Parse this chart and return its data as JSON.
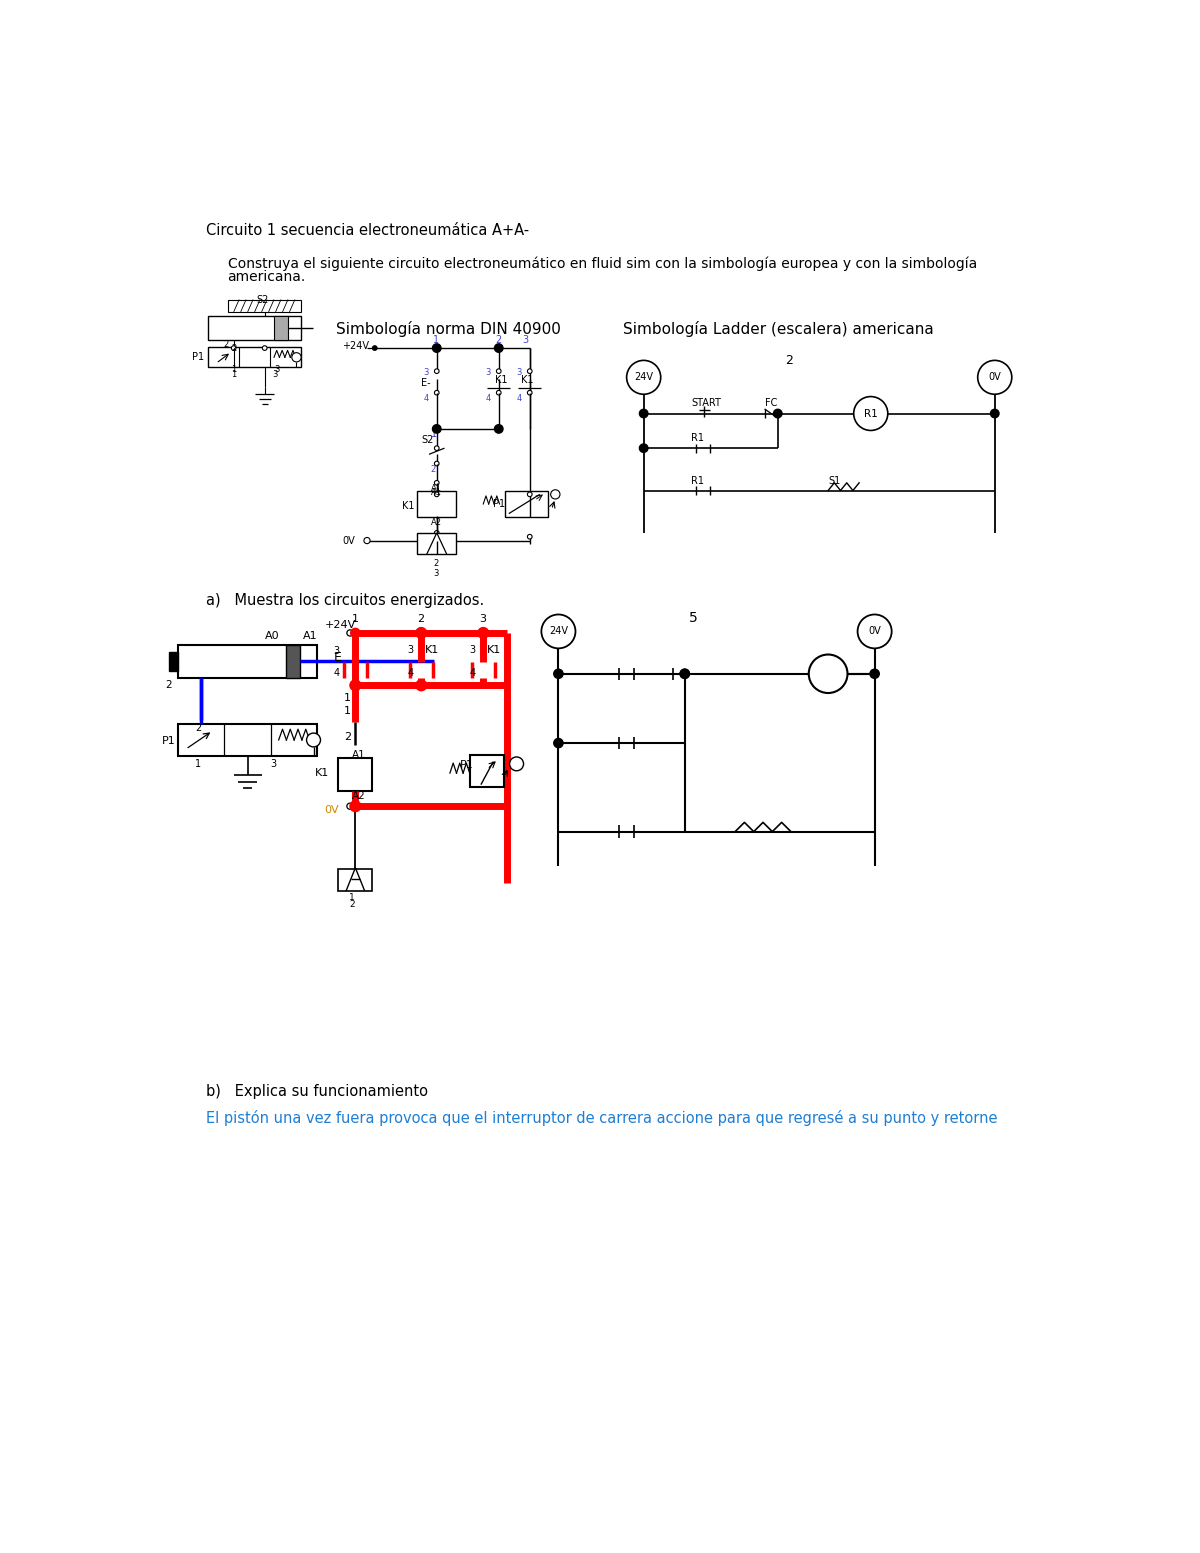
{
  "title_line": "Circuito 1 secuencia electroneumática A+A-",
  "body_line1": "Construya el siguiente circuito electroneumático en fluid sim con la simbología europea y con la simbología",
  "body_line2": "americana.",
  "label_din": "Simbología norma DIN 40900",
  "label_ladder": "Simbología Ladder (escalera) americana",
  "part_a": "a)   Muestra los circuitos energizados.",
  "part_b": "b)   Explica su funcionamiento",
  "blue_text": "El pistón una vez fuera provoca que el interruptor de carrera accione para que regresé a su punto y retorne",
  "bg_color": "#ffffff",
  "text_color": "#000000",
  "blue_color": "#1e7fd4"
}
